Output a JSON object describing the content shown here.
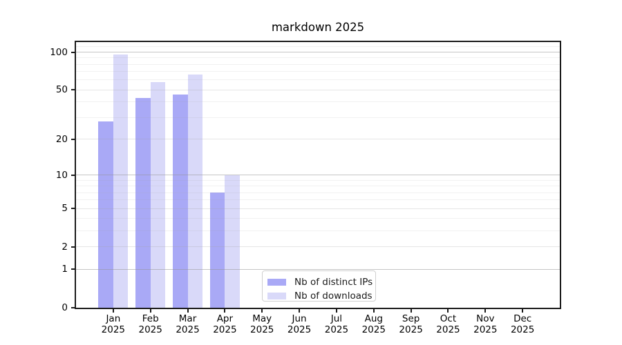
{
  "chart_data": {
    "type": "bar",
    "title": "markdown 2025",
    "x_months": [
      "Jan",
      "Feb",
      "Mar",
      "Apr",
      "May",
      "Jun",
      "Jul",
      "Aug",
      "Sep",
      "Oct",
      "Nov",
      "Dec"
    ],
    "x_year": "2025",
    "series": [
      {
        "name": "Nb of distinct IPs",
        "color": "#a9a9f6",
        "values": [
          28,
          43,
          46,
          7,
          0,
          0,
          0,
          0,
          0,
          0,
          0,
          0
        ]
      },
      {
        "name": "Nb of downloads",
        "color": "#d9d9f9",
        "values": [
          96,
          58,
          66,
          10,
          0,
          0,
          0,
          0,
          0,
          0,
          0,
          0
        ]
      }
    ],
    "y_ticks": [
      0,
      1,
      2,
      5,
      10,
      20,
      50,
      100
    ],
    "y_major_gridlines": [
      1,
      10,
      100
    ],
    "y_mid_gridlines": [
      2,
      5,
      20,
      50
    ],
    "y_minor_gridlines": [
      3,
      4,
      6,
      7,
      8,
      9,
      30,
      40,
      60,
      70,
      80,
      90,
      110
    ],
    "y_scale": "log10(value+1)",
    "ylim": [
      0,
      120
    ],
    "grid": true,
    "legend_position": "inside-bottom-center"
  }
}
